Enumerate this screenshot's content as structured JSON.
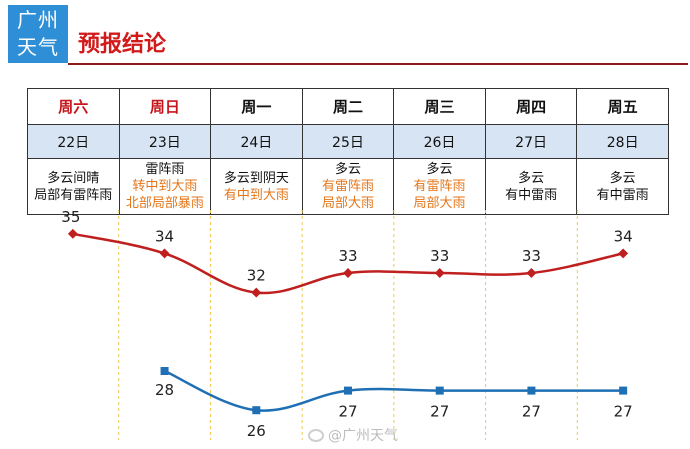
{
  "header": {
    "logo_line1": "广州",
    "logo_line2": "天气",
    "title": "预报结论"
  },
  "days": [
    {
      "label": "周六",
      "date": "22日",
      "weekend": true,
      "weather": [
        {
          "text": "多云间晴",
          "color": "#111111"
        },
        {
          "text": "局部有雷阵雨",
          "color": "#111111"
        }
      ]
    },
    {
      "label": "周日",
      "date": "23日",
      "weekend": true,
      "weather": [
        {
          "text": "雷阵雨",
          "color": "#111111"
        },
        {
          "text": "转中到大雨",
          "color": "#e4761a"
        },
        {
          "text": "北部局部暴雨",
          "color": "#e4761a"
        }
      ]
    },
    {
      "label": "周一",
      "date": "24日",
      "weekend": false,
      "weather": [
        {
          "text": "多云到阴天",
          "color": "#111111"
        },
        {
          "text": "有中到大雨",
          "color": "#e4761a"
        }
      ]
    },
    {
      "label": "周二",
      "date": "25日",
      "weekend": false,
      "weather": [
        {
          "text": "多云",
          "color": "#111111"
        },
        {
          "text": "有雷阵雨",
          "color": "#e4761a"
        },
        {
          "text": "局部大雨",
          "color": "#e4761a"
        }
      ]
    },
    {
      "label": "周三",
      "date": "26日",
      "weekend": false,
      "weather": [
        {
          "text": "多云",
          "color": "#111111"
        },
        {
          "text": "有雷阵雨",
          "color": "#e4761a"
        },
        {
          "text": "局部大雨",
          "color": "#e4761a"
        }
      ]
    },
    {
      "label": "周四",
      "date": "27日",
      "weekend": false,
      "weather": [
        {
          "text": "多云",
          "color": "#111111"
        },
        {
          "text": "有中雷雨",
          "color": "#111111"
        }
      ]
    },
    {
      "label": "周五",
      "date": "28日",
      "weekend": false,
      "weather": [
        {
          "text": "多云",
          "color": "#111111"
        },
        {
          "text": "有中雷雨",
          "color": "#111111"
        }
      ]
    }
  ],
  "chart_data": {
    "type": "line",
    "categories": [
      "22日",
      "23日",
      "24日",
      "25日",
      "26日",
      "27日",
      "28日"
    ],
    "series": [
      {
        "values": [
          35,
          34,
          32,
          33,
          33,
          33,
          34
        ],
        "color": "#c01f1f",
        "marker": "diamond"
      },
      {
        "values": [
          null,
          28,
          26,
          27,
          27,
          27,
          27
        ],
        "color": "#1f6fb5",
        "marker": "square"
      }
    ],
    "ylim": [
      25.5,
      35.5
    ],
    "gridlines": "vertical-dashed"
  },
  "watermark": "@广州天气"
}
